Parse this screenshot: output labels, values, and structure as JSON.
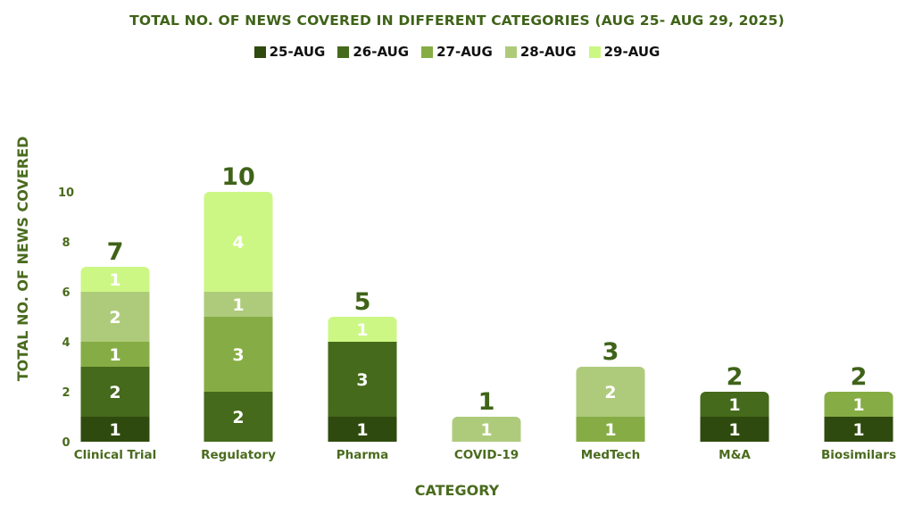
{
  "chart_data": {
    "type": "bar",
    "stacked": true,
    "title": "TOTAL NO. OF NEWS COVERED IN DIFFERENT CATEGORIES (AUG 25- AUG 29, 2025)",
    "xlabel": "CATEGORY",
    "ylabel": "TOTAL  NO. OF NEWS COVERED",
    "ylim": [
      0,
      10
    ],
    "yticks": [
      "0",
      "2",
      "4",
      "6",
      "8",
      "10"
    ],
    "grid": false,
    "legend_position": "top",
    "categories": [
      "Clinical Trial",
      "Regulatory",
      "Pharma",
      "COVID-19",
      "MedTech",
      "M&A",
      "Biosimilars"
    ],
    "series": [
      {
        "name": "25-AUG",
        "color": "#2f4a0e",
        "values": [
          1,
          0,
          1,
          0,
          0,
          1,
          1
        ]
      },
      {
        "name": "26-AUG",
        "color": "#456a1b",
        "values": [
          2,
          2,
          3,
          0,
          0,
          1,
          0
        ]
      },
      {
        "name": "27-AUG",
        "color": "#86ad45",
        "values": [
          1,
          3,
          0,
          0,
          1,
          0,
          1
        ]
      },
      {
        "name": "28-AUG",
        "color": "#aecb7c",
        "values": [
          2,
          1,
          0,
          1,
          2,
          0,
          0
        ]
      },
      {
        "name": "29-AUG",
        "color": "#ccf784",
        "values": [
          1,
          4,
          1,
          0,
          0,
          0,
          0
        ]
      }
    ],
    "totals": [
      "7",
      "10",
      "5",
      "1",
      "3",
      "2",
      "2"
    ]
  }
}
